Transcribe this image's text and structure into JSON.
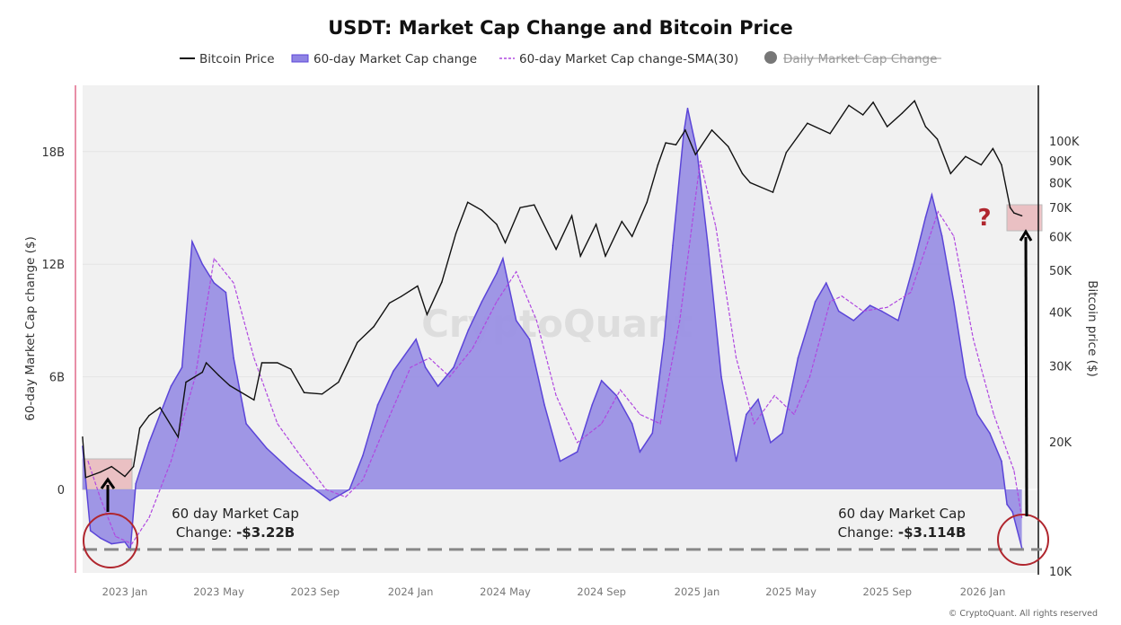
{
  "chart_data": {
    "type": "area",
    "title": "USDT: Market Cap Change and Bitcoin Price",
    "ylabel": "60-day Market Cap change ($)",
    "y2label": "Bitcoin price ($)",
    "ylim": [
      -4.4,
      21.5
    ],
    "y2lim": [
      10000,
      135000
    ],
    "y2scale": "log",
    "xlim": [
      "2022-11-08",
      "2026-02-28"
    ],
    "grid": true,
    "legend_placement": "top-center",
    "y_ticks": [
      {
        "v": 0,
        "label": "0"
      },
      {
        "v": 6,
        "label": "6B"
      },
      {
        "v": 12,
        "label": "12B"
      },
      {
        "v": 18,
        "label": "18B"
      }
    ],
    "y2_ticks": [
      {
        "v": 10000,
        "label": "10K"
      },
      {
        "v": 20000,
        "label": "20K"
      },
      {
        "v": 30000,
        "label": "30K"
      },
      {
        "v": 40000,
        "label": "40K"
      },
      {
        "v": 50000,
        "label": "50K"
      },
      {
        "v": 60000,
        "label": "60K"
      },
      {
        "v": 70000,
        "label": "70K"
      },
      {
        "v": 80000,
        "label": "80K"
      },
      {
        "v": 90000,
        "label": "90K"
      },
      {
        "v": 100000,
        "label": "100K"
      }
    ],
    "x_ticks": [
      {
        "d": "2023-01-01",
        "label": "2023 Jan"
      },
      {
        "d": "2023-05-01",
        "label": "2023 May"
      },
      {
        "d": "2023-09-01",
        "label": "2023 Sep"
      },
      {
        "d": "2024-01-01",
        "label": "2024 Jan"
      },
      {
        "d": "2024-05-01",
        "label": "2024 May"
      },
      {
        "d": "2024-09-01",
        "label": "2024 Sep"
      },
      {
        "d": "2025-01-01",
        "label": "2025 Jan"
      },
      {
        "d": "2025-05-01",
        "label": "2025 May"
      },
      {
        "d": "2025-09-01",
        "label": "2025 Sep"
      },
      {
        "d": "2026-01-01",
        "label": "2026 Jan"
      }
    ],
    "legend": [
      {
        "name": "Bitcoin Price",
        "style": "line",
        "color": "#111111"
      },
      {
        "name": "60-day Market Cap change",
        "style": "area",
        "color": "#7b6fe0"
      },
      {
        "name": "60-day Market Cap change-SMA(30)",
        "style": "dashed",
        "color": "#b048e0"
      },
      {
        "name": "Daily Market Cap Change",
        "style": "dot",
        "color": "#777777",
        "hidden": true
      }
    ],
    "series": [
      {
        "name": "60-day Market Cap change",
        "unit": "B USD",
        "color": "#5b45d8",
        "fill": "#9a90e4",
        "points": [
          [
            "2022-11-08",
            2.3
          ],
          [
            "2022-11-18",
            -2.2
          ],
          [
            "2022-12-01",
            -2.6
          ],
          [
            "2022-12-15",
            -2.9
          ],
          [
            "2023-01-01",
            -2.8
          ],
          [
            "2023-01-08",
            -3.22
          ],
          [
            "2023-01-15",
            0.3
          ],
          [
            "2023-02-01",
            2.5
          ],
          [
            "2023-02-15",
            4
          ],
          [
            "2023-03-01",
            5.5
          ],
          [
            "2023-03-15",
            6.5
          ],
          [
            "2023-03-28",
            13.2
          ],
          [
            "2023-04-10",
            12
          ],
          [
            "2023-04-25",
            11
          ],
          [
            "2023-05-10",
            10.5
          ],
          [
            "2023-05-20",
            7
          ],
          [
            "2023-06-05",
            3.5
          ],
          [
            "2023-07-01",
            2.2
          ],
          [
            "2023-08-01",
            1
          ],
          [
            "2023-09-01",
            0
          ],
          [
            "2023-09-20",
            -0.6
          ],
          [
            "2023-10-15",
            0
          ],
          [
            "2023-11-01",
            1.8
          ],
          [
            "2023-11-20",
            4.5
          ],
          [
            "2023-12-10",
            6.3
          ],
          [
            "2024-01-08",
            8
          ],
          [
            "2024-01-20",
            6.5
          ],
          [
            "2024-02-05",
            5.5
          ],
          [
            "2024-02-25",
            6.5
          ],
          [
            "2024-03-15",
            8.5
          ],
          [
            "2024-04-01",
            10
          ],
          [
            "2024-04-20",
            11.5
          ],
          [
            "2024-04-28",
            12.3
          ],
          [
            "2024-05-15",
            9
          ],
          [
            "2024-06-01",
            8
          ],
          [
            "2024-06-20",
            4.5
          ],
          [
            "2024-07-10",
            1.5
          ],
          [
            "2024-08-01",
            2
          ],
          [
            "2024-08-20",
            4.5
          ],
          [
            "2024-09-01",
            5.8
          ],
          [
            "2024-09-20",
            5
          ],
          [
            "2024-10-10",
            3.5
          ],
          [
            "2024-10-20",
            2
          ],
          [
            "2024-11-05",
            3
          ],
          [
            "2024-11-20",
            8
          ],
          [
            "2024-12-01",
            13
          ],
          [
            "2024-12-15",
            19
          ],
          [
            "2024-12-20",
            20.3
          ],
          [
            "2025-01-01",
            18
          ],
          [
            "2025-01-15",
            13
          ],
          [
            "2025-02-01",
            6
          ],
          [
            "2025-02-20",
            1.5
          ],
          [
            "2025-03-05",
            4
          ],
          [
            "2025-03-20",
            4.8
          ],
          [
            "2025-04-05",
            2.5
          ],
          [
            "2025-04-20",
            3
          ],
          [
            "2025-05-10",
            7
          ],
          [
            "2025-06-01",
            10
          ],
          [
            "2025-06-15",
            11
          ],
          [
            "2025-07-01",
            9.5
          ],
          [
            "2025-07-20",
            9
          ],
          [
            "2025-08-10",
            9.8
          ],
          [
            "2025-08-25",
            9.5
          ],
          [
            "2025-09-15",
            9
          ],
          [
            "2025-10-05",
            12
          ],
          [
            "2025-10-20",
            14.5
          ],
          [
            "2025-10-28",
            15.7
          ],
          [
            "2025-11-10",
            13.5
          ],
          [
            "2025-11-25",
            10
          ],
          [
            "2025-12-10",
            6
          ],
          [
            "2025-12-25",
            4
          ],
          [
            "2026-01-10",
            3
          ],
          [
            "2026-01-25",
            1.5
          ],
          [
            "2026-02-01",
            -0.8
          ],
          [
            "2026-02-08",
            -1.2
          ],
          [
            "2026-02-20",
            -3.114
          ]
        ]
      },
      {
        "name": "60-day Market Cap change-SMA(30)",
        "unit": "B USD",
        "color": "#b048e0",
        "points": [
          [
            "2022-11-15",
            1.5
          ],
          [
            "2022-12-01",
            -0.5
          ],
          [
            "2022-12-20",
            -2.5
          ],
          [
            "2023-01-10",
            -2.9
          ],
          [
            "2023-02-01",
            -1.5
          ],
          [
            "2023-03-01",
            1.5
          ],
          [
            "2023-04-01",
            6
          ],
          [
            "2023-04-25",
            12.3
          ],
          [
            "2023-05-20",
            11
          ],
          [
            "2023-06-15",
            7
          ],
          [
            "2023-07-15",
            3.5
          ],
          [
            "2023-08-15",
            1.7
          ],
          [
            "2023-09-15",
            0
          ],
          [
            "2023-10-10",
            -0.4
          ],
          [
            "2023-11-01",
            0.5
          ],
          [
            "2023-12-01",
            3.5
          ],
          [
            "2024-01-01",
            6.5
          ],
          [
            "2024-01-25",
            7
          ],
          [
            "2024-02-20",
            6
          ],
          [
            "2024-03-20",
            7.5
          ],
          [
            "2024-04-20",
            10
          ],
          [
            "2024-05-15",
            11.6
          ],
          [
            "2024-06-10",
            9
          ],
          [
            "2024-07-05",
            5
          ],
          [
            "2024-08-01",
            2.5
          ],
          [
            "2024-09-01",
            3.5
          ],
          [
            "2024-09-25",
            5.3
          ],
          [
            "2024-10-20",
            4
          ],
          [
            "2024-11-15",
            3.5
          ],
          [
            "2024-12-10",
            9
          ],
          [
            "2025-01-05",
            17.5
          ],
          [
            "2025-01-25",
            14
          ],
          [
            "2025-02-20",
            7
          ],
          [
            "2025-03-15",
            3.5
          ],
          [
            "2025-04-10",
            5
          ],
          [
            "2025-05-05",
            4
          ],
          [
            "2025-05-25",
            6
          ],
          [
            "2025-06-20",
            10
          ],
          [
            "2025-07-05",
            10.3
          ],
          [
            "2025-08-01",
            9.5
          ],
          [
            "2025-09-01",
            9.7
          ],
          [
            "2025-10-01",
            10.5
          ],
          [
            "2025-11-05",
            14.8
          ],
          [
            "2025-11-25",
            13.5
          ],
          [
            "2025-12-20",
            8
          ],
          [
            "2026-01-15",
            4
          ],
          [
            "2026-02-10",
            1
          ],
          [
            "2026-02-20",
            -1.5
          ]
        ]
      },
      {
        "name": "Bitcoin Price",
        "unit": "USD",
        "axis": "right",
        "color": "#111111",
        "points": [
          [
            "2022-11-08",
            20500
          ],
          [
            "2022-11-12",
            16500
          ],
          [
            "2022-12-01",
            17000
          ],
          [
            "2022-12-15",
            17500
          ],
          [
            "2023-01-01",
            16600
          ],
          [
            "2023-01-12",
            17500
          ],
          [
            "2023-01-20",
            21500
          ],
          [
            "2023-02-01",
            23000
          ],
          [
            "2023-02-15",
            24000
          ],
          [
            "2023-03-10",
            20500
          ],
          [
            "2023-03-20",
            27500
          ],
          [
            "2023-04-10",
            29000
          ],
          [
            "2023-04-15",
            30500
          ],
          [
            "2023-05-01",
            28500
          ],
          [
            "2023-05-15",
            27000
          ],
          [
            "2023-06-15",
            25000
          ],
          [
            "2023-06-25",
            30500
          ],
          [
            "2023-07-15",
            30500
          ],
          [
            "2023-08-01",
            29500
          ],
          [
            "2023-08-18",
            26000
          ],
          [
            "2023-09-10",
            25800
          ],
          [
            "2023-10-01",
            27500
          ],
          [
            "2023-10-25",
            34000
          ],
          [
            "2023-11-15",
            37000
          ],
          [
            "2023-12-05",
            42000
          ],
          [
            "2023-12-20",
            43500
          ],
          [
            "2024-01-10",
            46000
          ],
          [
            "2024-01-22",
            39500
          ],
          [
            "2024-02-10",
            47000
          ],
          [
            "2024-02-28",
            61000
          ],
          [
            "2024-03-14",
            72000
          ],
          [
            "2024-04-01",
            69000
          ],
          [
            "2024-04-20",
            64000
          ],
          [
            "2024-05-01",
            58000
          ],
          [
            "2024-05-20",
            70000
          ],
          [
            "2024-06-07",
            71000
          ],
          [
            "2024-07-05",
            56000
          ],
          [
            "2024-07-25",
            67000
          ],
          [
            "2024-08-05",
            54000
          ],
          [
            "2024-08-25",
            64000
          ],
          [
            "2024-09-06",
            54000
          ],
          [
            "2024-09-27",
            65000
          ],
          [
            "2024-10-10",
            60000
          ],
          [
            "2024-10-29",
            72000
          ],
          [
            "2024-11-12",
            88000
          ],
          [
            "2024-11-22",
            99000
          ],
          [
            "2024-12-05",
            98000
          ],
          [
            "2024-12-17",
            106000
          ],
          [
            "2024-12-30",
            93000
          ],
          [
            "2025-01-20",
            106000
          ],
          [
            "2025-02-10",
            97000
          ],
          [
            "2025-02-28",
            84000
          ],
          [
            "2025-03-10",
            80000
          ],
          [
            "2025-04-08",
            76000
          ],
          [
            "2025-04-25",
            94000
          ],
          [
            "2025-05-22",
            110000
          ],
          [
            "2025-06-20",
            104000
          ],
          [
            "2025-07-14",
            121000
          ],
          [
            "2025-08-01",
            115000
          ],
          [
            "2025-08-14",
            123000
          ],
          [
            "2025-09-01",
            108000
          ],
          [
            "2025-09-20",
            116000
          ],
          [
            "2025-10-06",
            124000
          ],
          [
            "2025-10-20",
            108000
          ],
          [
            "2025-11-04",
            101000
          ],
          [
            "2025-11-21",
            84000
          ],
          [
            "2025-12-10",
            92000
          ],
          [
            "2025-12-30",
            88000
          ],
          [
            "2026-01-14",
            96000
          ],
          [
            "2026-01-25",
            88000
          ],
          [
            "2026-02-05",
            70000
          ],
          [
            "2026-02-10",
            68000
          ],
          [
            "2026-02-20",
            67000
          ]
        ]
      }
    ],
    "annotations": {
      "left_label_line1": "60 day Market Cap",
      "left_label_line2_prefix": "Change: ",
      "left_label_value": "-$3.22B",
      "right_label_line1": "60 day Market Cap",
      "right_label_line2_prefix": "Change: ",
      "right_label_value": "-$3.114B",
      "question_mark": "?",
      "reference_level": -3.2,
      "highlight_color": "#e8b4b8",
      "circle_color": "#b0262e"
    },
    "watermark": "CryptoQuant",
    "copyright": "© CryptoQuant. All rights reserved"
  }
}
